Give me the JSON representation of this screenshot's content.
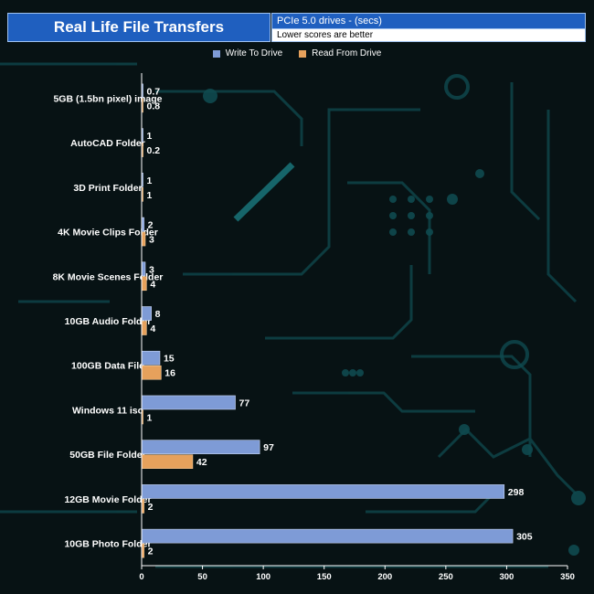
{
  "header": {
    "title": "Real Life File Transfers",
    "subtitle": "PCIe 5.0 drives - (secs)",
    "note": "Lower scores are better"
  },
  "colors": {
    "write": "#7e9bd6",
    "read": "#e6a15c",
    "axis": "#ffffff",
    "background": "#071214"
  },
  "chart_data": {
    "type": "bar",
    "orientation": "horizontal",
    "title": "Real Life File Transfers",
    "categories": [
      "5GB (1.5bn pixel) image",
      "AutoCAD Folder",
      "3D Print Folder",
      "4K Movie Clips Folder",
      "8K Movie Scenes Folder",
      "10GB Audio Folder",
      "100GB Data File",
      "Windows 11 iso",
      "50GB File Folder",
      "12GB Movie Folder",
      "10GB Photo Folder"
    ],
    "series": [
      {
        "name": "Write To  Drive",
        "values": [
          0.7,
          1,
          1,
          2,
          3,
          8,
          15,
          77,
          97,
          298,
          305
        ]
      },
      {
        "name": "Read From  Drive",
        "values": [
          0.8,
          0.2,
          1,
          3,
          4,
          4,
          16,
          1,
          42,
          2,
          2
        ]
      }
    ],
    "xlim": [
      0,
      350
    ],
    "xticks": [
      "0",
      "50",
      "100",
      "150",
      "200",
      "250",
      "300",
      "350"
    ],
    "legend": "top-center"
  }
}
